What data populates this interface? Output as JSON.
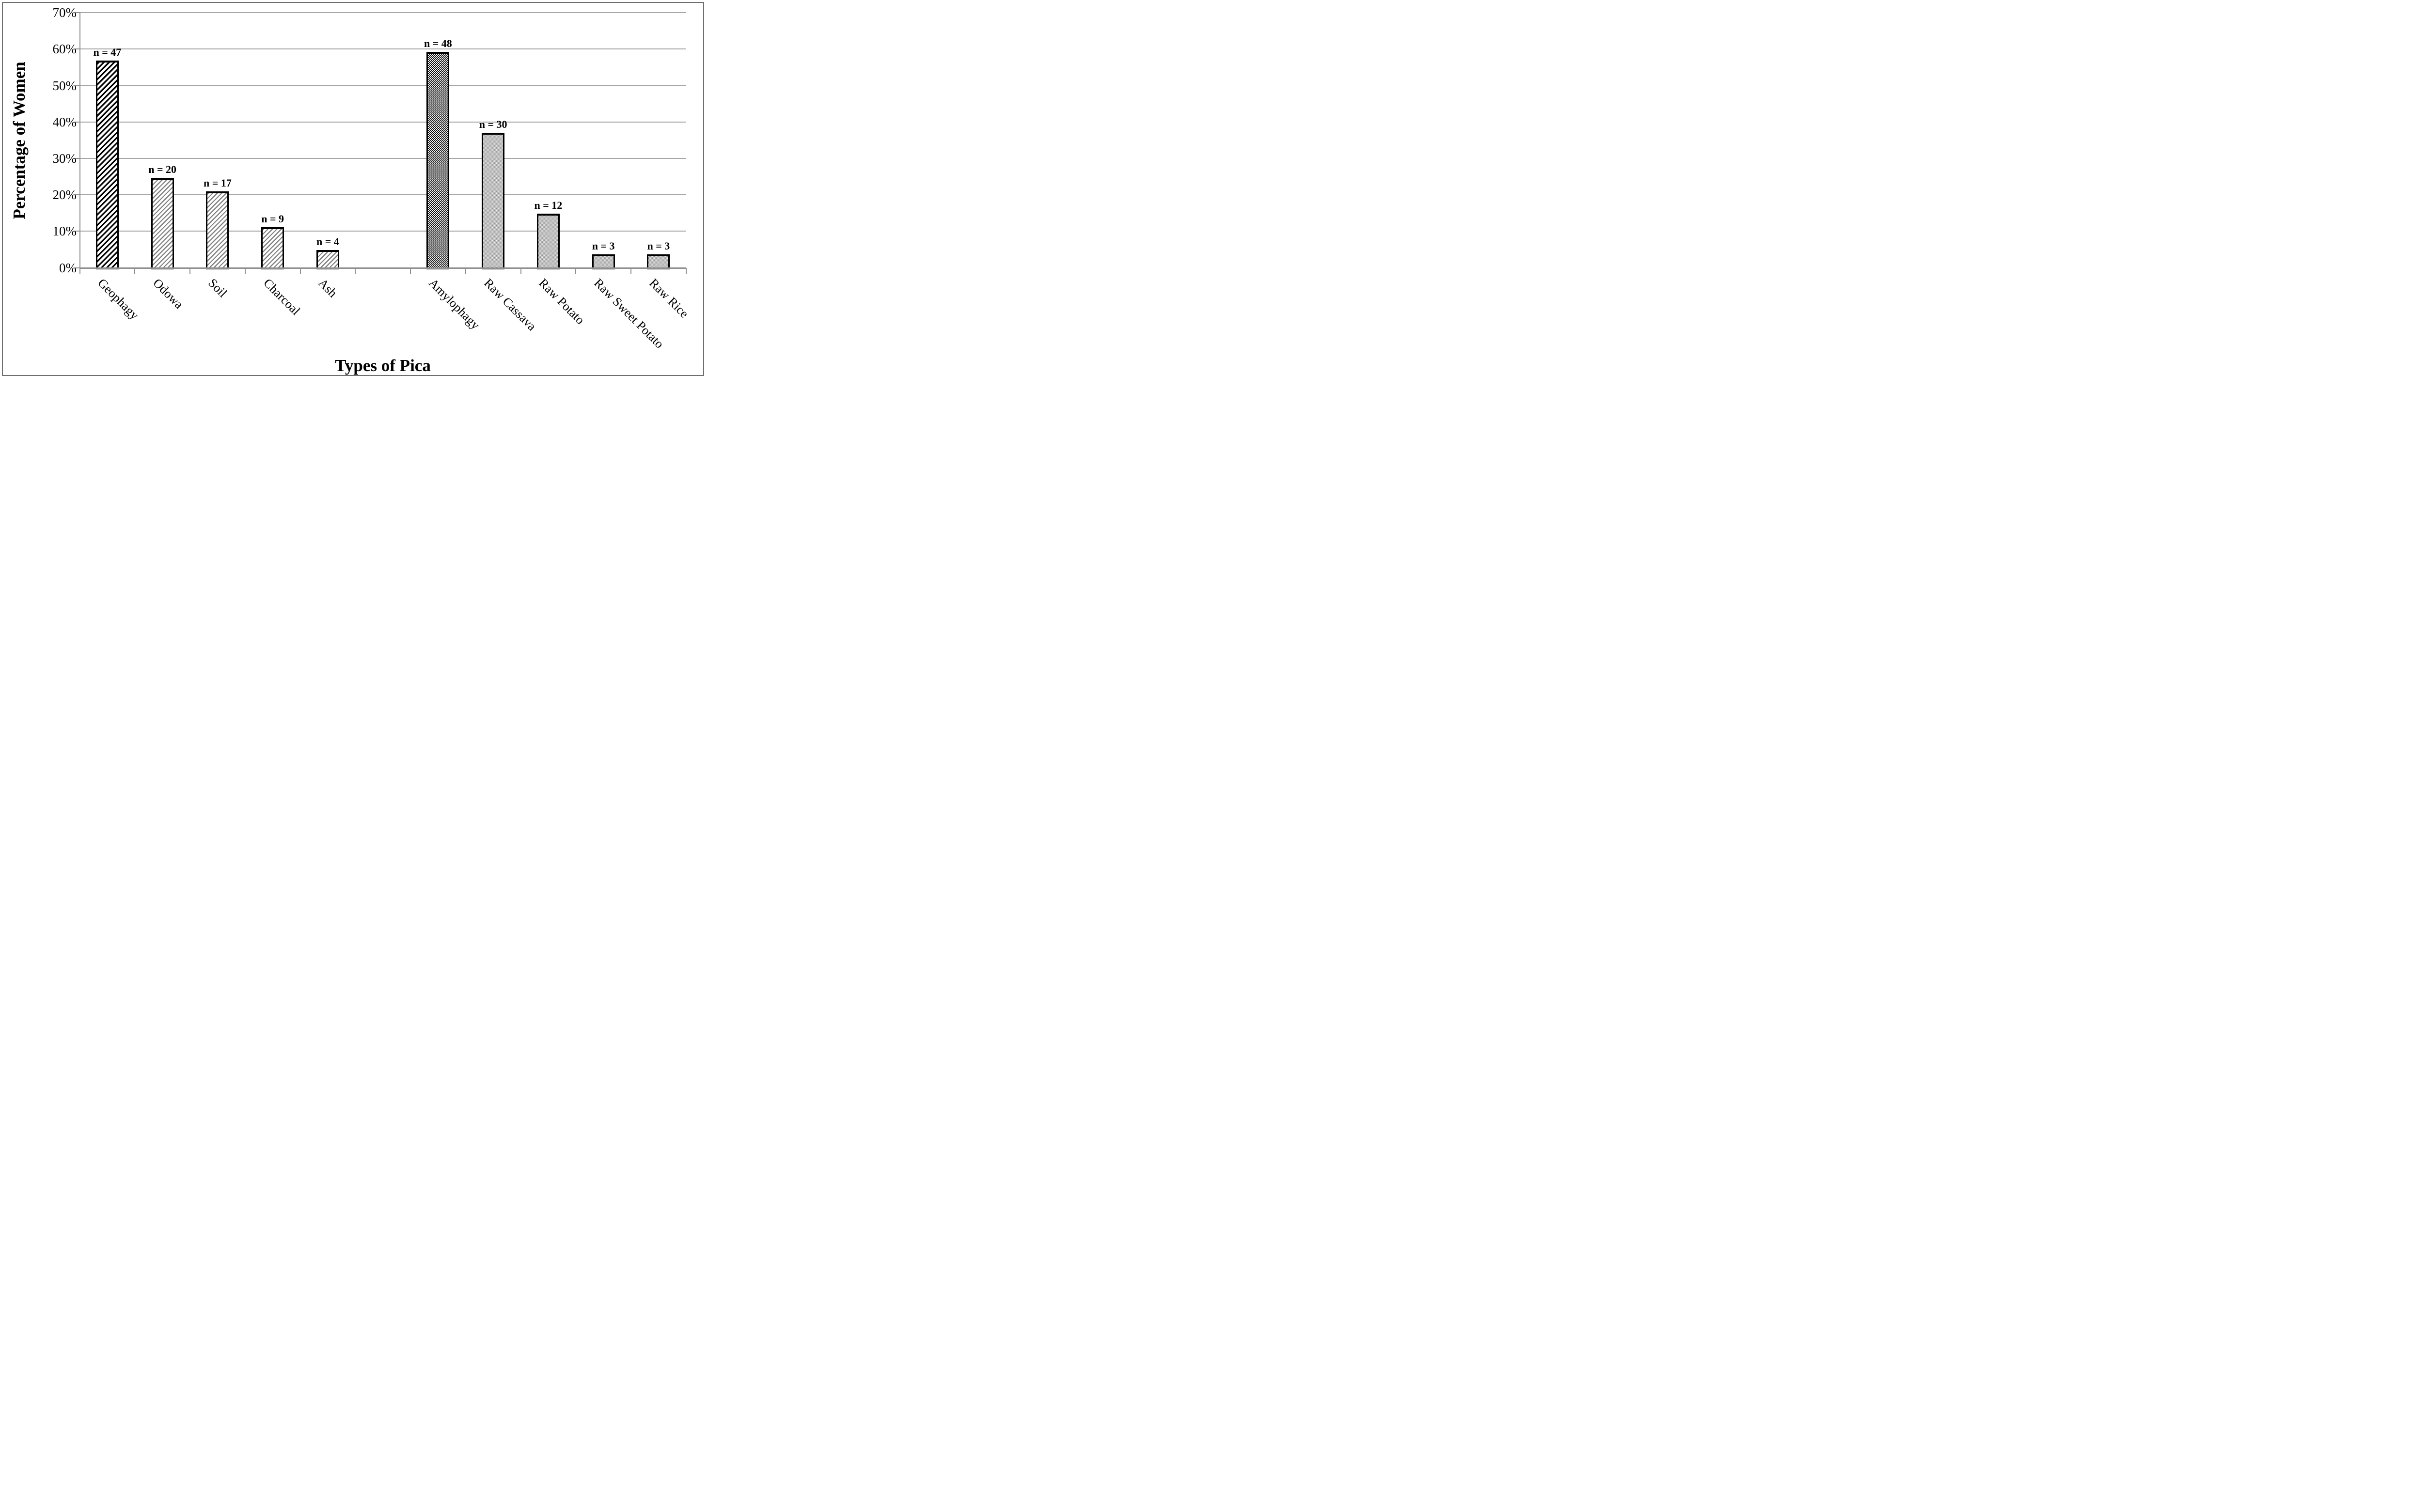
{
  "figure": {
    "y_axis_title": "Percentage of Women",
    "x_axis_title": "Types of Pica"
  },
  "colors": {
    "bar_outline": "#000000",
    "pattern_gray": "#808080",
    "gridline": "#a6a6a6",
    "axis": "#8f8f8f",
    "frame_border": "#6e6e6e",
    "background": "#ffffff",
    "text": "#000000"
  },
  "chart_data": {
    "type": "bar",
    "title": "",
    "xlabel": "Types of Pica",
    "ylabel": "Percentage of Women",
    "ylim": [
      0,
      70
    ],
    "y_tick_step": 10,
    "y_tick_labels": [
      "0%",
      "10%",
      "20%",
      "30%",
      "40%",
      "50%",
      "60%",
      "70%"
    ],
    "grid": "horizontal",
    "legend_position": "none",
    "categories": [
      "Geophagy",
      "Odowa",
      "Soil",
      "Charcoal",
      "Ash",
      "Amylophagy",
      "Raw Cassava",
      "Raw Potato",
      "Raw Sweet Potato",
      "Raw Rice"
    ],
    "values": [
      56.9,
      24.7,
      21.0,
      11.1,
      4.9,
      59.3,
      37.0,
      14.8,
      3.7,
      3.7
    ],
    "counts": [
      47,
      20,
      17,
      9,
      4,
      48,
      30,
      12,
      3,
      3
    ],
    "bar_labels": [
      "n = 47",
      "n = 20",
      "n = 17",
      "n = 9",
      "n = 4",
      "n = 48",
      "n = 30",
      "n = 12",
      "n = 3",
      "n = 3"
    ],
    "bar_patterns": [
      "diag-black",
      "diag-gray",
      "diag-gray",
      "diag-gray",
      "diag-gray",
      "checker-black",
      "checker-gray",
      "checker-gray",
      "checker-gray",
      "checker-gray"
    ],
    "slot_indices": [
      0,
      1,
      2,
      3,
      4,
      6,
      7,
      8,
      9,
      10
    ],
    "total_slots": 11,
    "empty_slot_between_groups": 5,
    "x_label_rotation_deg": 45
  }
}
